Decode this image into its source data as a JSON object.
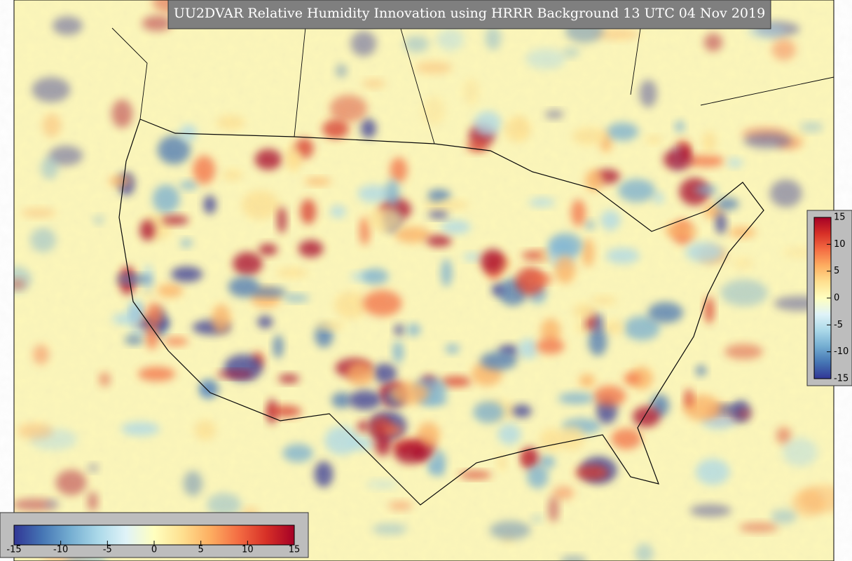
{
  "title": "UU2DVAR Relative Humidity Innovation using HRRR Background 13 UTC 04 Nov 2019",
  "horizontal_colorbar": {
    "ticks": [
      -15,
      -10,
      -5,
      0,
      5,
      10,
      15
    ]
  },
  "vertical_colorbar": {
    "ticks": [
      15,
      10,
      5,
      0,
      -5,
      -10,
      -15
    ]
  }
}
